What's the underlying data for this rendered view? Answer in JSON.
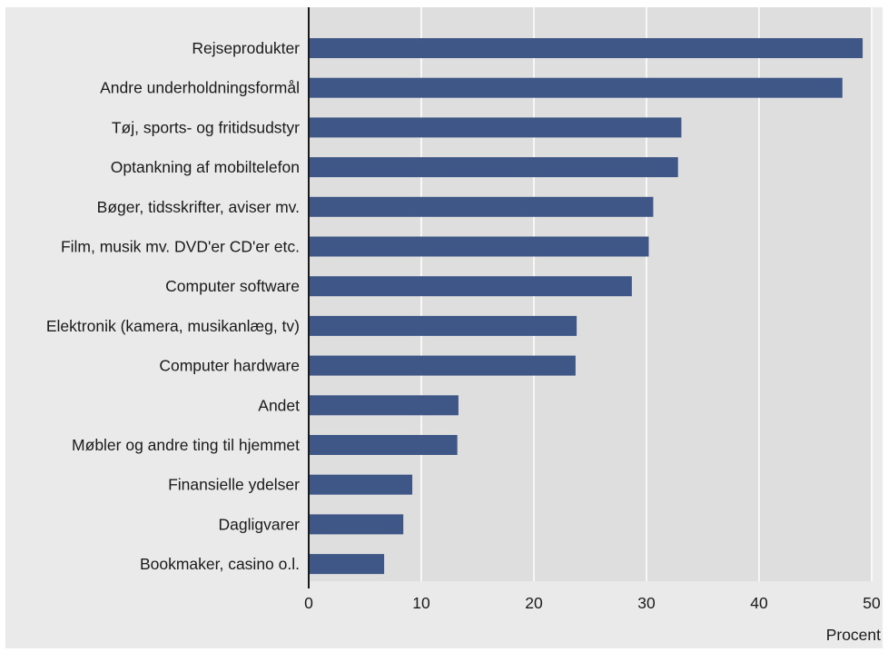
{
  "chart_data": {
    "type": "bar",
    "orientation": "horizontal",
    "categories": [
      "Rejseprodukter",
      "Andre underholdningsformål",
      "Tøj, sports- og fritidsudstyr",
      "Optankning af mobiltelefon",
      "Bøger, tidsskrifter, aviser mv.",
      "Film, musik mv. DVD'er CD'er etc.",
      "Computer software",
      "Elektronik (kamera, musikanlæg, tv)",
      "Computer hardware",
      "Andet",
      "Møbler og andre ting til hjemmet",
      "Finansielle ydelser",
      "Dagligvarer",
      "Bookmaker, casino o.l."
    ],
    "values": [
      49.2,
      47.4,
      33.1,
      32.8,
      30.6,
      30.2,
      28.7,
      23.8,
      23.7,
      13.3,
      13.2,
      9.2,
      8.4,
      6.7
    ],
    "xlabel": "Procent",
    "ylabel": "",
    "xlim": [
      0,
      50
    ],
    "xticks": [
      "0",
      "10",
      "20",
      "30",
      "40",
      "50"
    ],
    "grid": true,
    "bar_color": "#3f5787",
    "plot_bg_color": "#dedede",
    "panel_bg_color": "#eaeaea",
    "grid_color": "#ffffff"
  }
}
